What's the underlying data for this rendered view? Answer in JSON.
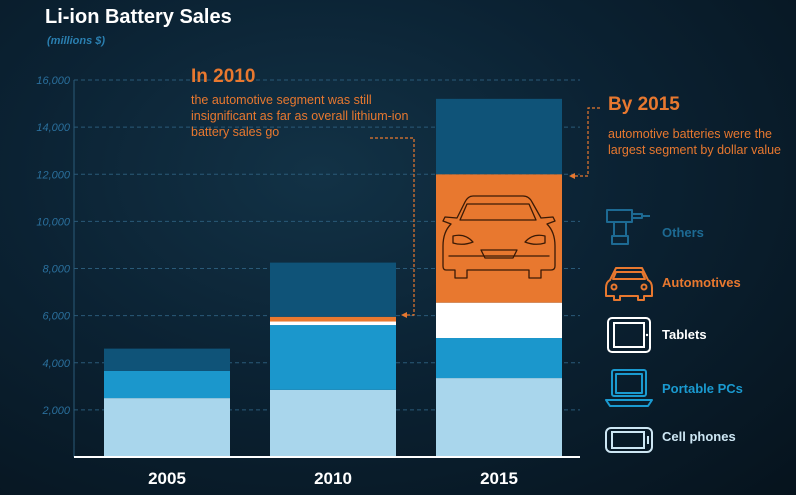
{
  "title": "Li-ion Battery Sales",
  "subtitle": "(millions $)",
  "annotations": {
    "y2010": {
      "heading": "In 2010",
      "text": "the automotive segment was still insignificant as far as overall lithium-ion battery sales go"
    },
    "y2015": {
      "heading": "By 2015",
      "text": "automotive batteries were the largest segment by dollar value"
    }
  },
  "legend": [
    {
      "key": "others",
      "label": "Others",
      "color": "#1d6a93",
      "icon": "drill-icon"
    },
    {
      "key": "automotives",
      "label": "Automotives",
      "color": "#e8782f",
      "icon": "car-icon"
    },
    {
      "key": "tablets",
      "label": "Tablets",
      "color": "#ffffff",
      "icon": "tablet-icon"
    },
    {
      "key": "portable_pcs",
      "label": "Portable PCs",
      "color": "#1a9ad0",
      "icon": "laptop-icon"
    },
    {
      "key": "cell_phones",
      "label": "Cell phones",
      "color": "#cde6f3",
      "icon": "phone-icon"
    }
  ],
  "chart_data": {
    "type": "bar",
    "stacked": true,
    "title": "Li-ion Battery Sales",
    "ylabel": "(millions $)",
    "xlabel": "",
    "categories": [
      "2005",
      "2010",
      "2015"
    ],
    "ylim": [
      0,
      16000
    ],
    "yticks": [
      "2,000",
      "4,000",
      "6,000",
      "8,000",
      "10,000",
      "12,000",
      "14,000",
      "16,000"
    ],
    "series": [
      {
        "name": "Cell phones",
        "color": "#a9d6ec",
        "values": [
          2500,
          2850,
          3350
        ]
      },
      {
        "name": "Portable PCs",
        "color": "#1b97cc",
        "values": [
          1150,
          2750,
          1700
        ]
      },
      {
        "name": "Tablets",
        "color": "#ffffff",
        "values": [
          0,
          150,
          1500
        ]
      },
      {
        "name": "Automotives",
        "color": "#e8782f",
        "values": [
          0,
          200,
          5450
        ]
      },
      {
        "name": "Others",
        "color": "#0f5378",
        "values": [
          950,
          2300,
          3200
        ]
      }
    ]
  }
}
